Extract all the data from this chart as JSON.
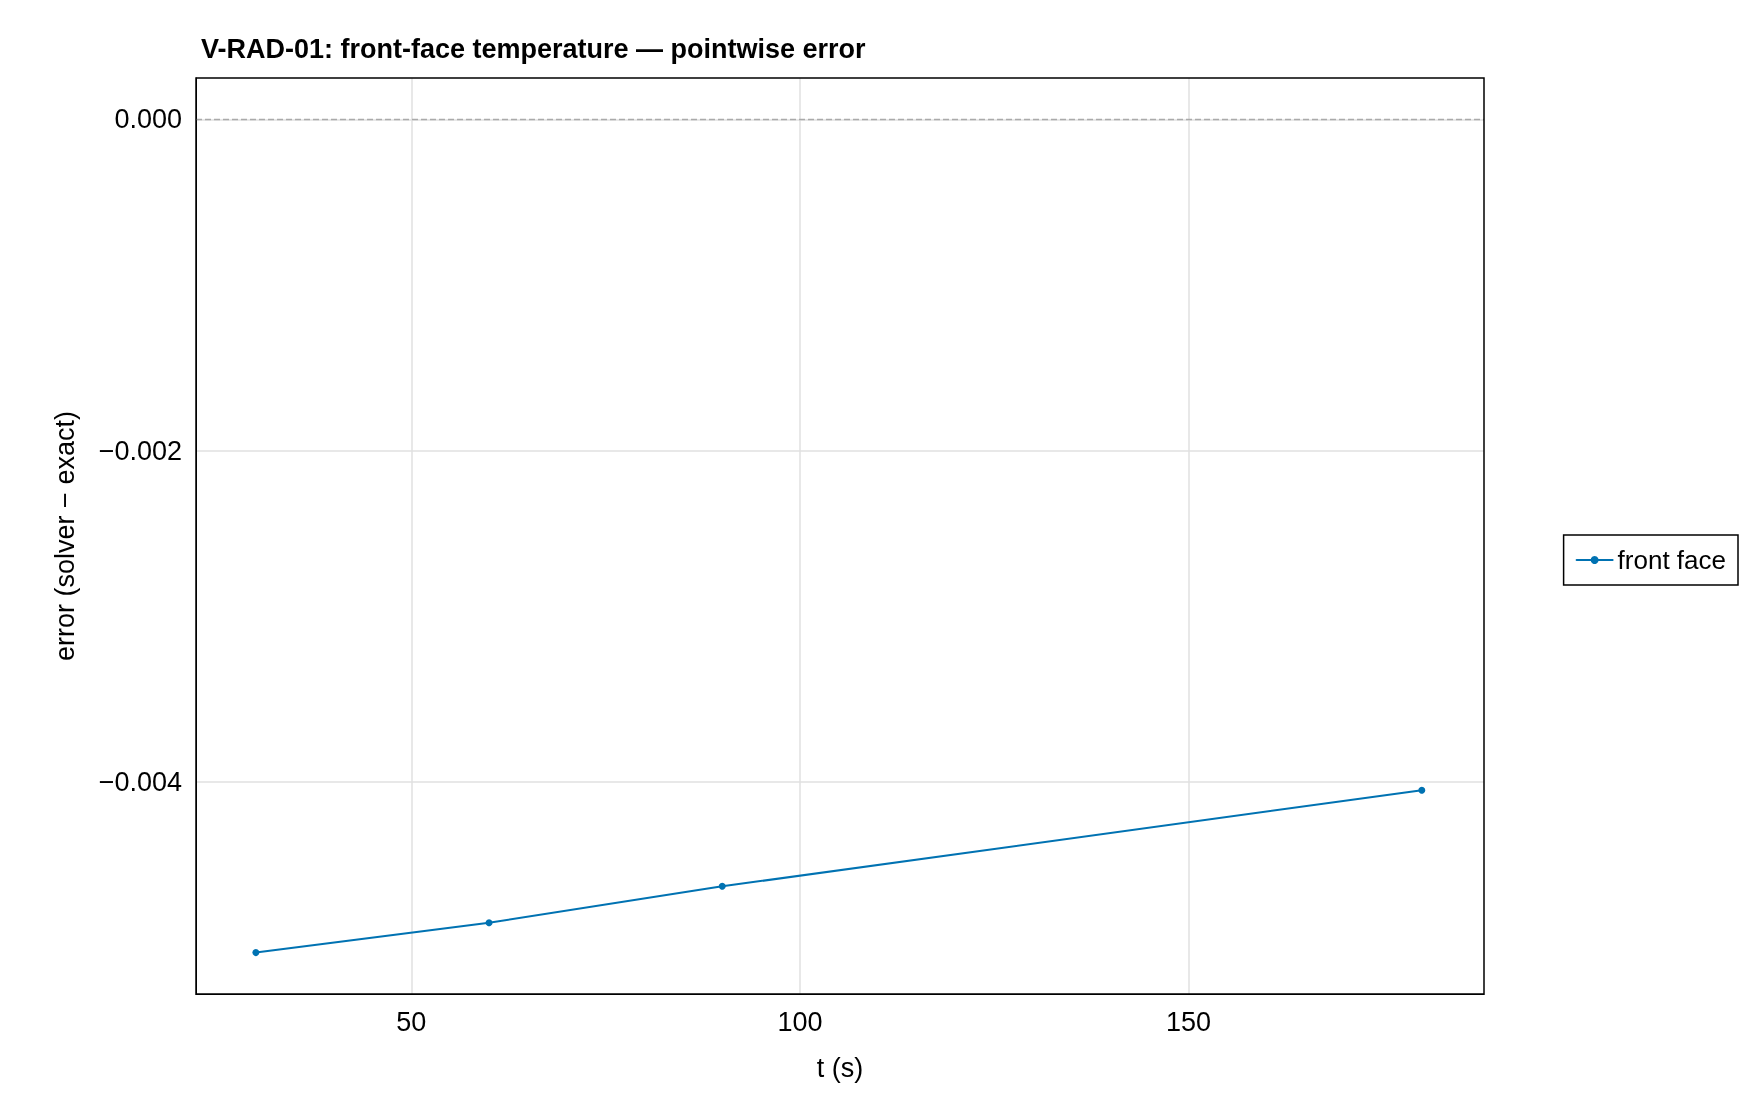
{
  "chart_data": {
    "type": "line",
    "title": "V-RAD-01: front-face temperature — pointwise error",
    "xlabel": "t (s)",
    "ylabel": "error (solver − exact)",
    "x": [
      30,
      60,
      90,
      180
    ],
    "series": [
      {
        "name": "front face",
        "color": "#0072b2",
        "values": [
          -0.00503,
          -0.00485,
          -0.00463,
          -0.00405
        ]
      }
    ],
    "xlim": [
      22.3,
      188
    ],
    "xticks": [
      50,
      100,
      150
    ],
    "ylim": [
      -0.00528,
      0.00025
    ],
    "yticks": [
      {
        "value": -0.004,
        "label": "−0.004"
      },
      {
        "value": -0.002,
        "label": "−0.002"
      },
      {
        "value": 0,
        "label": "0.000"
      }
    ],
    "ref_lines": [
      {
        "axis": "y",
        "value": 0,
        "color": "#aaaaaa",
        "line_style": "dashed"
      }
    ],
    "grid": true,
    "legend": "right",
    "marker": "circle",
    "line_style": "solid"
  }
}
